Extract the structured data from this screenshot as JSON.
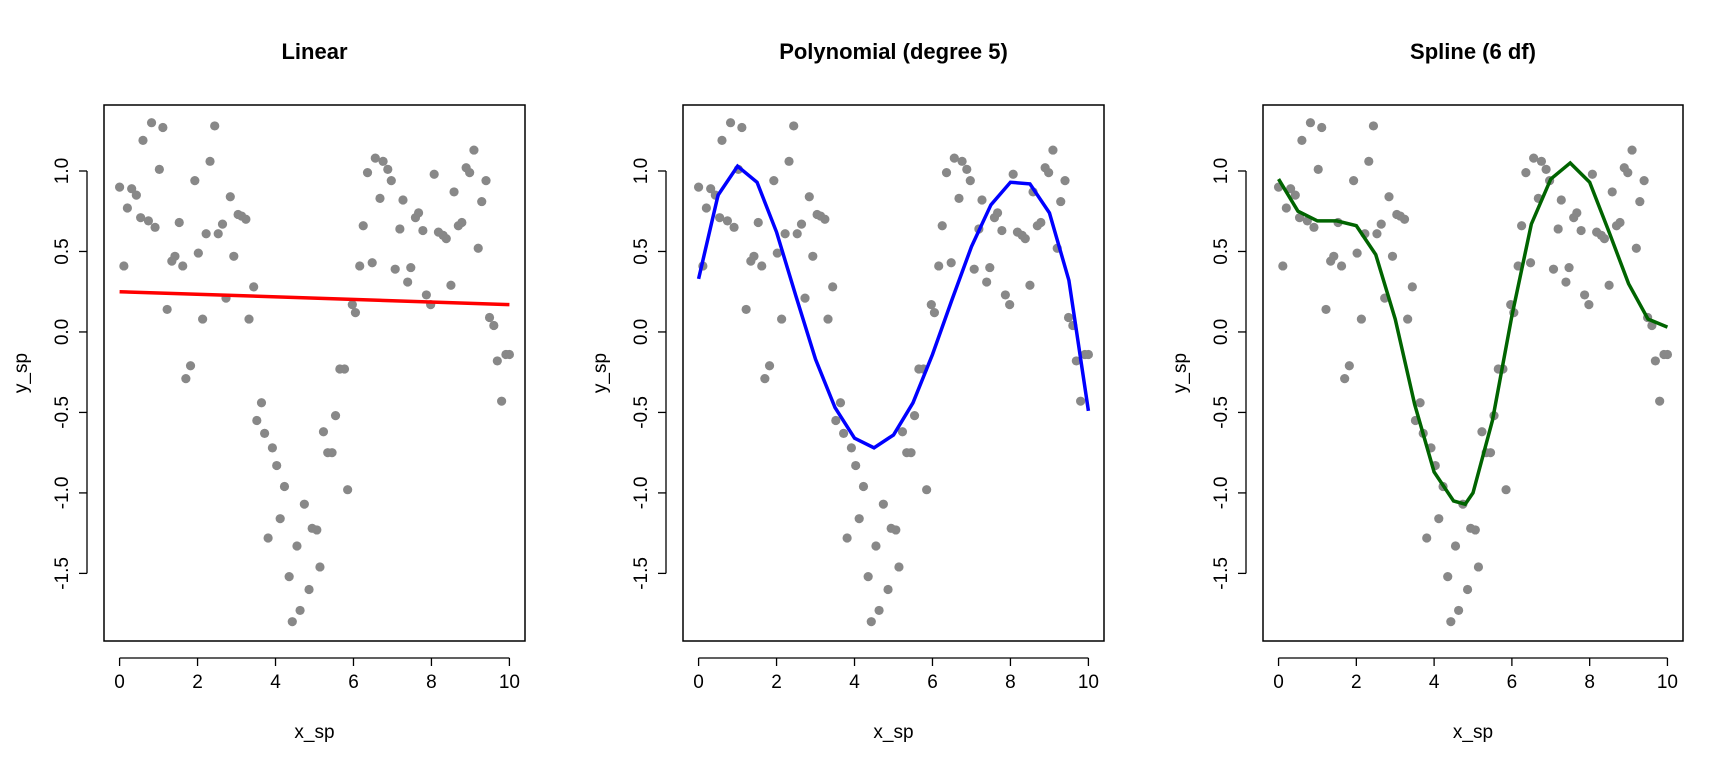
{
  "chart_data": [
    {
      "type": "scatter",
      "title": "Linear",
      "x_label": "x_sp",
      "y_label": "y_sp",
      "x": [
        0,
        0.11,
        0.2,
        0.31,
        0.43,
        0.54,
        0.6,
        0.74,
        0.82,
        0.91,
        1.02,
        1.11,
        1.22,
        1.34,
        1.42,
        1.53,
        1.62,
        1.7,
        1.82,
        1.93,
        2.02,
        2.13,
        2.22,
        2.32,
        2.44,
        2.53,
        2.64,
        2.73,
        2.84,
        2.93,
        3.04,
        3.13,
        3.24,
        3.32,
        3.44,
        3.52,
        3.64,
        3.72,
        3.81,
        3.92,
        4.03,
        4.12,
        4.23,
        4.35,
        4.43,
        4.55,
        4.63,
        4.74,
        4.86,
        4.94,
        5.06,
        5.14,
        5.23,
        5.34,
        5.45,
        5.54,
        5.65,
        5.77,
        5.85,
        5.97,
        6.05,
        6.16,
        6.25,
        6.36,
        6.48,
        6.56,
        6.68,
        6.76,
        6.88,
        6.97,
        7.07,
        7.19,
        7.27,
        7.39,
        7.47,
        7.59,
        7.67,
        7.78,
        7.87,
        7.98,
        8.07,
        8.18,
        8.3,
        8.38,
        8.5,
        8.58,
        8.69,
        8.78,
        8.89,
        8.98,
        9.09,
        9.2,
        9.29,
        9.4,
        9.49,
        9.6,
        9.69,
        9.8,
        9.91,
        10
      ],
      "y": [
        0.9,
        0.41,
        0.77,
        0.89,
        0.85,
        0.71,
        1.19,
        0.69,
        1.3,
        0.65,
        1.01,
        1.27,
        0.14,
        0.44,
        0.47,
        0.68,
        0.41,
        -0.29,
        -0.21,
        0.94,
        0.49,
        0.08,
        0.61,
        1.06,
        1.28,
        0.61,
        0.67,
        0.21,
        0.84,
        0.47,
        0.73,
        0.72,
        0.7,
        0.08,
        0.28,
        -0.55,
        -0.44,
        -0.63,
        -1.28,
        -0.72,
        -0.83,
        -1.16,
        -0.96,
        -1.52,
        -1.8,
        -1.33,
        -1.73,
        -1.07,
        -1.6,
        -1.22,
        -1.23,
        -1.46,
        -0.62,
        -0.75,
        -0.75,
        -0.52,
        -0.23,
        -0.23,
        -0.98,
        0.17,
        0.12,
        0.41,
        0.66,
        0.99,
        0.43,
        1.08,
        0.83,
        1.06,
        1.01,
        0.94,
        0.39,
        0.64,
        0.82,
        0.31,
        0.4,
        0.71,
        0.74,
        0.63,
        0.23,
        0.17,
        0.98,
        0.62,
        0.6,
        0.58,
        0.29,
        0.87,
        0.66,
        0.68,
        1.02,
        0.99,
        1.13,
        0.52,
        0.81,
        0.94,
        0.09,
        0.04,
        -0.18,
        -0.43,
        -0.14,
        -0.14
      ],
      "point_color": "#888888",
      "fit": {
        "x": [
          0,
          10
        ],
        "y": [
          0.25,
          0.17
        ],
        "color": "#ff0000"
      },
      "xlim": [
        -0.4,
        10.4
      ],
      "ylim": [
        -1.92,
        1.41
      ],
      "xticks": [
        0,
        2,
        4,
        6,
        8,
        10
      ],
      "yticks": [
        {
          "value": -1.5,
          "label": "-1.5"
        },
        {
          "value": -1,
          "label": "-1.0"
        },
        -0.5,
        {
          "value": 0,
          "label": "0.0"
        },
        0.5,
        {
          "value": 1,
          "label": "1.0"
        }
      ]
    },
    {
      "type": "scatter",
      "title": "Polynomial (degree 5)",
      "x_label": "x_sp",
      "y_label": "y_sp",
      "x": [
        0,
        0.11,
        0.2,
        0.31,
        0.43,
        0.54,
        0.6,
        0.74,
        0.82,
        0.91,
        1.02,
        1.11,
        1.22,
        1.34,
        1.42,
        1.53,
        1.62,
        1.7,
        1.82,
        1.93,
        2.02,
        2.13,
        2.22,
        2.32,
        2.44,
        2.53,
        2.64,
        2.73,
        2.84,
        2.93,
        3.04,
        3.13,
        3.24,
        3.32,
        3.44,
        3.52,
        3.64,
        3.72,
        3.81,
        3.92,
        4.03,
        4.12,
        4.23,
        4.35,
        4.43,
        4.55,
        4.63,
        4.74,
        4.86,
        4.94,
        5.06,
        5.14,
        5.23,
        5.34,
        5.45,
        5.54,
        5.65,
        5.77,
        5.85,
        5.97,
        6.05,
        6.16,
        6.25,
        6.36,
        6.48,
        6.56,
        6.68,
        6.76,
        6.88,
        6.97,
        7.07,
        7.19,
        7.27,
        7.39,
        7.47,
        7.59,
        7.67,
        7.78,
        7.87,
        7.98,
        8.07,
        8.18,
        8.3,
        8.38,
        8.5,
        8.58,
        8.69,
        8.78,
        8.89,
        8.98,
        9.09,
        9.2,
        9.29,
        9.4,
        9.49,
        9.6,
        9.69,
        9.8,
        9.91,
        10
      ],
      "y": [
        0.9,
        0.41,
        0.77,
        0.89,
        0.85,
        0.71,
        1.19,
        0.69,
        1.3,
        0.65,
        1.01,
        1.27,
        0.14,
        0.44,
        0.47,
        0.68,
        0.41,
        -0.29,
        -0.21,
        0.94,
        0.49,
        0.08,
        0.61,
        1.06,
        1.28,
        0.61,
        0.67,
        0.21,
        0.84,
        0.47,
        0.73,
        0.72,
        0.7,
        0.08,
        0.28,
        -0.55,
        -0.44,
        -0.63,
        -1.28,
        -0.72,
        -0.83,
        -1.16,
        -0.96,
        -1.52,
        -1.8,
        -1.33,
        -1.73,
        -1.07,
        -1.6,
        -1.22,
        -1.23,
        -1.46,
        -0.62,
        -0.75,
        -0.75,
        -0.52,
        -0.23,
        -0.23,
        -0.98,
        0.17,
        0.12,
        0.41,
        0.66,
        0.99,
        0.43,
        1.08,
        0.83,
        1.06,
        1.01,
        0.94,
        0.39,
        0.64,
        0.82,
        0.31,
        0.4,
        0.71,
        0.74,
        0.63,
        0.23,
        0.17,
        0.98,
        0.62,
        0.6,
        0.58,
        0.29,
        0.87,
        0.66,
        0.68,
        1.02,
        0.99,
        1.13,
        0.52,
        0.81,
        0.94,
        0.09,
        0.04,
        -0.18,
        -0.43,
        -0.14,
        -0.14
      ],
      "point_color": "#888888",
      "fit": {
        "x": [
          0,
          0.5,
          1,
          1.5,
          2,
          2.5,
          3,
          3.5,
          4,
          4.5,
          5,
          5.5,
          6,
          6.5,
          7,
          7.5,
          8,
          8.5,
          9,
          9.5,
          10
        ],
        "y": [
          0.33,
          0.85,
          1.03,
          0.93,
          0.62,
          0.22,
          -0.17,
          -0.47,
          -0.66,
          -0.72,
          -0.64,
          -0.44,
          -0.14,
          0.2,
          0.53,
          0.79,
          0.93,
          0.92,
          0.74,
          0.32,
          -0.49
        ],
        "color": "#0000ff"
      },
      "xlim": [
        -0.4,
        10.4
      ],
      "ylim": [
        -1.92,
        1.41
      ],
      "xticks": [
        0,
        2,
        4,
        6,
        8,
        10
      ],
      "yticks": [
        {
          "value": -1.5,
          "label": "-1.5"
        },
        {
          "value": -1,
          "label": "-1.0"
        },
        -0.5,
        {
          "value": 0,
          "label": "0.0"
        },
        0.5,
        {
          "value": 1,
          "label": "1.0"
        }
      ]
    },
    {
      "type": "scatter",
      "title": "Spline (6 df)",
      "x_label": "x_sp",
      "y_label": "y_sp",
      "x": [
        0,
        0.11,
        0.2,
        0.31,
        0.43,
        0.54,
        0.6,
        0.74,
        0.82,
        0.91,
        1.02,
        1.11,
        1.22,
        1.34,
        1.42,
        1.53,
        1.62,
        1.7,
        1.82,
        1.93,
        2.02,
        2.13,
        2.22,
        2.32,
        2.44,
        2.53,
        2.64,
        2.73,
        2.84,
        2.93,
        3.04,
        3.13,
        3.24,
        3.32,
        3.44,
        3.52,
        3.64,
        3.72,
        3.81,
        3.92,
        4.03,
        4.12,
        4.23,
        4.35,
        4.43,
        4.55,
        4.63,
        4.74,
        4.86,
        4.94,
        5.06,
        5.14,
        5.23,
        5.34,
        5.45,
        5.54,
        5.65,
        5.77,
        5.85,
        5.97,
        6.05,
        6.16,
        6.25,
        6.36,
        6.48,
        6.56,
        6.68,
        6.76,
        6.88,
        6.97,
        7.07,
        7.19,
        7.27,
        7.39,
        7.47,
        7.59,
        7.67,
        7.78,
        7.87,
        7.98,
        8.07,
        8.18,
        8.3,
        8.38,
        8.5,
        8.58,
        8.69,
        8.78,
        8.89,
        8.98,
        9.09,
        9.2,
        9.29,
        9.4,
        9.49,
        9.6,
        9.69,
        9.8,
        9.91,
        10
      ],
      "y": [
        0.9,
        0.41,
        0.77,
        0.89,
        0.85,
        0.71,
        1.19,
        0.69,
        1.3,
        0.65,
        1.01,
        1.27,
        0.14,
        0.44,
        0.47,
        0.68,
        0.41,
        -0.29,
        -0.21,
        0.94,
        0.49,
        0.08,
        0.61,
        1.06,
        1.28,
        0.61,
        0.67,
        0.21,
        0.84,
        0.47,
        0.73,
        0.72,
        0.7,
        0.08,
        0.28,
        -0.55,
        -0.44,
        -0.63,
        -1.28,
        -0.72,
        -0.83,
        -1.16,
        -0.96,
        -1.52,
        -1.8,
        -1.33,
        -1.73,
        -1.07,
        -1.6,
        -1.22,
        -1.23,
        -1.46,
        -0.62,
        -0.75,
        -0.75,
        -0.52,
        -0.23,
        -0.23,
        -0.98,
        0.17,
        0.12,
        0.41,
        0.66,
        0.99,
        0.43,
        1.08,
        0.83,
        1.06,
        1.01,
        0.94,
        0.39,
        0.64,
        0.82,
        0.31,
        0.4,
        0.71,
        0.74,
        0.63,
        0.23,
        0.17,
        0.98,
        0.62,
        0.6,
        0.58,
        0.29,
        0.87,
        0.66,
        0.68,
        1.02,
        0.99,
        1.13,
        0.52,
        0.81,
        0.94,
        0.09,
        0.04,
        -0.18,
        -0.43,
        -0.14,
        -0.14
      ],
      "point_color": "#888888",
      "fit": {
        "x": [
          0,
          0.5,
          1,
          1.5,
          2,
          2.5,
          3,
          3.5,
          4,
          4.5,
          4.8,
          5,
          5.5,
          6,
          6.5,
          7,
          7.5,
          8,
          8.5,
          9,
          9.5,
          10
        ],
        "y": [
          0.95,
          0.75,
          0.69,
          0.69,
          0.66,
          0.48,
          0.08,
          -0.45,
          -0.87,
          -1.05,
          -1.07,
          -1,
          -0.55,
          0.1,
          0.67,
          0.95,
          1.05,
          0.93,
          0.62,
          0.3,
          0.08,
          0.03
        ],
        "color": "#006400"
      },
      "xlim": [
        -0.4,
        10.4
      ],
      "ylim": [
        -1.92,
        1.41
      ],
      "xticks": [
        0,
        2,
        4,
        6,
        8,
        10
      ],
      "yticks": [
        {
          "value": -1.5,
          "label": "-1.5"
        },
        {
          "value": -1,
          "label": "-1.0"
        },
        -0.5,
        {
          "value": 0,
          "label": "0.0"
        },
        0.5,
        {
          "value": 1,
          "label": "1.0"
        }
      ]
    }
  ]
}
